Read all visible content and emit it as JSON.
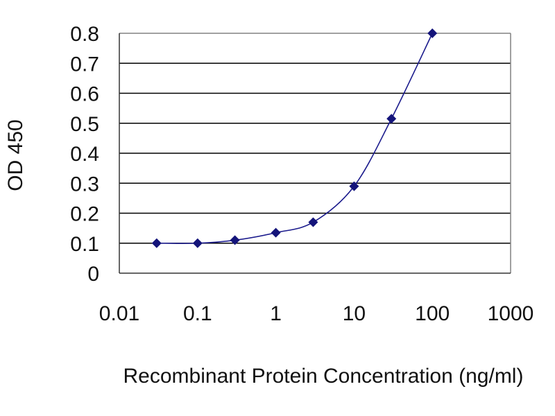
{
  "chart_data": {
    "type": "line",
    "title": "",
    "xlabel": "Recombinant Protein Concentration (ng/ml)",
    "ylabel": "OD 450",
    "x_scale": "log",
    "xlim": [
      0.01,
      1000
    ],
    "ylim": [
      0,
      0.8
    ],
    "x_ticks": [
      "0.01",
      "0.1",
      "1",
      "10",
      "100",
      "1000"
    ],
    "y_ticks": [
      "0",
      "0.1",
      "0.2",
      "0.3",
      "0.4",
      "0.5",
      "0.6",
      "0.7",
      "0.8"
    ],
    "grid": "horizontal",
    "legend": "none",
    "series": [
      {
        "x": [
          0.03,
          0.1,
          0.3,
          1,
          3,
          10,
          30,
          100
        ],
        "y": [
          0.1,
          0.1,
          0.11,
          0.135,
          0.17,
          0.29,
          0.515,
          0.8
        ]
      }
    ],
    "colors": {
      "line": "#1a1a8c",
      "marker": "#14147a",
      "grid": "#000000",
      "frame": "#808080"
    }
  }
}
